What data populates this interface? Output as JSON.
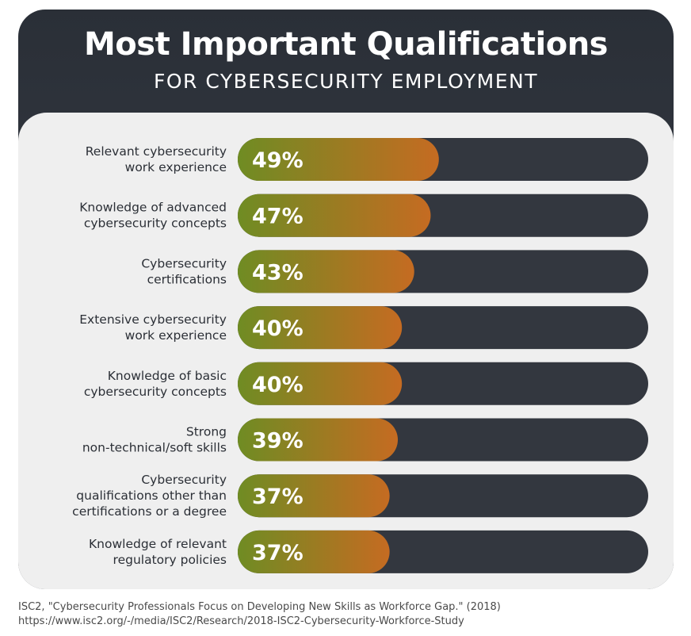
{
  "header": {
    "title": "Most Important Qualifications",
    "subtitle": "FOR CYBERSECURITY EMPLOYMENT"
  },
  "chart_data": {
    "type": "bar",
    "orientation": "horizontal",
    "categories": [
      [
        "Relevant cybersecurity",
        "work experience"
      ],
      [
        "Knowledge of advanced",
        "cybersecurity concepts"
      ],
      [
        "Cybersecurity",
        "certifications"
      ],
      [
        "Extensive cybersecurity",
        "work experience"
      ],
      [
        "Knowledge of basic",
        "cybersecurity concepts"
      ],
      [
        "Strong",
        "non-technical/soft skills"
      ],
      [
        "Cybersecurity",
        "qualifications other than",
        "certifications or a degree"
      ],
      [
        "Knowledge of relevant",
        "regulatory policies"
      ]
    ],
    "values": [
      49,
      47,
      43,
      40,
      40,
      39,
      37,
      37
    ],
    "value_labels": [
      "49%",
      "47%",
      "43%",
      "40%",
      "40%",
      "39%",
      "37%",
      "37%"
    ],
    "unit": "%",
    "xlim": [
      0,
      100
    ],
    "colors": {
      "fill_start": "#6f8c23",
      "fill_end": "#c56b22",
      "track": "#33373f"
    }
  },
  "footer": {
    "source_line1": "ISC2, \"Cybersecurity Professionals Focus on Developing New Skills as Workforce Gap.\" (2018)",
    "source_line2": "https://www.isc2.org/-/media/ISC2/Research/2018-ISC2-Cybersecurity-Workforce-Study"
  }
}
